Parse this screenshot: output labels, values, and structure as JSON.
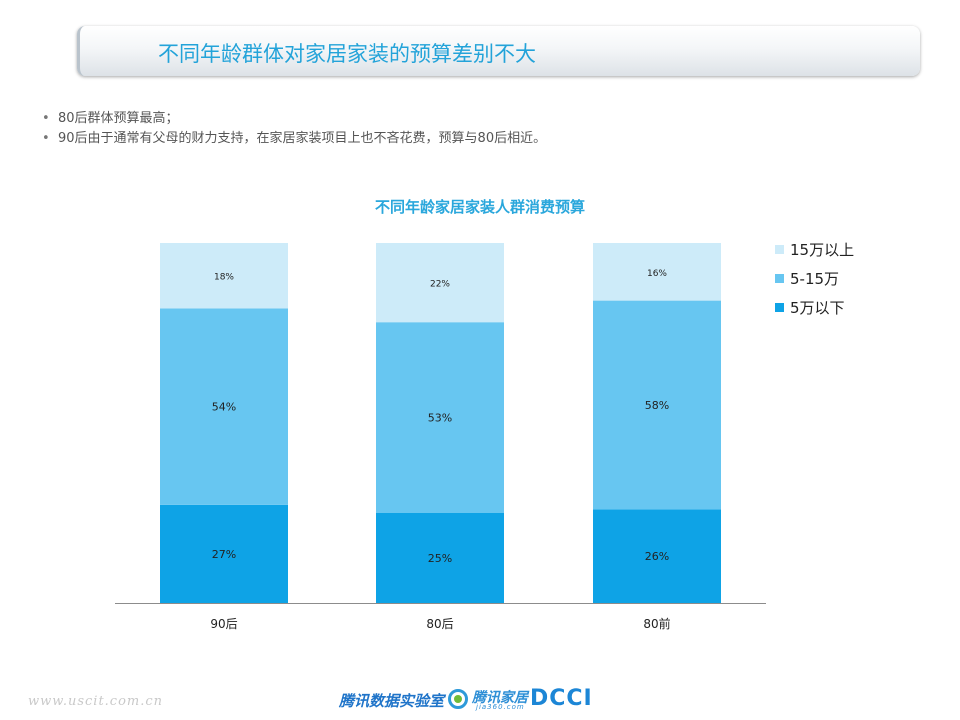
{
  "header": {
    "title": "不同年龄群体对家居家装的预算差别不大"
  },
  "bullets": [
    {
      "marker": "•",
      "text": "80后群体预算最高；"
    },
    {
      "marker": "•",
      "text": "90后由于通常有父母的财力支持，在家居家装项目上也不吝花费，预算与80后相近。"
    }
  ],
  "chart_data": {
    "type": "bar",
    "stacked": true,
    "title": "不同年龄家居家装人群消费预算",
    "categories": [
      "90后",
      "80后",
      "80前"
    ],
    "series": [
      {
        "name": "5万以下",
        "values": [
          27,
          25,
          26
        ],
        "labels": [
          "27%",
          "25%",
          "26%"
        ],
        "color": "#0ea3e6"
      },
      {
        "name": "5-15万",
        "values": [
          54,
          53,
          58
        ],
        "labels": [
          "54%",
          "53%",
          "58%"
        ],
        "color": "#67c6f1"
      },
      {
        "name": "15万以上",
        "values": [
          18,
          22,
          16
        ],
        "labels": [
          "18%",
          "22%",
          "16%"
        ],
        "color": "#cdebf9"
      }
    ],
    "legend_order": [
      "15万以上",
      "5-15万",
      "5万以下"
    ],
    "legend_position": "right",
    "grid": false,
    "ylim": [
      0,
      100
    ]
  },
  "footer": {
    "watermark": "www.uscit.com.cn",
    "lab": "腾讯数据实验室",
    "home_name": "腾讯家居",
    "home_url": "jia360.com",
    "dcci": "DCCI"
  }
}
